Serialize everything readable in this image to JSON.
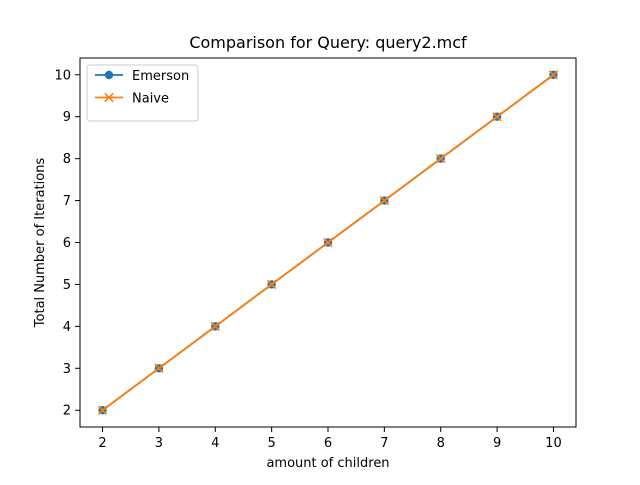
{
  "chart_data": {
    "type": "line",
    "title": "Comparison for Query: query2.mcf",
    "xlabel": "amount of children",
    "ylabel": "Total Number of Iterations",
    "xlim": [
      1.6,
      10.4
    ],
    "ylim": [
      1.6,
      10.4
    ],
    "x": [
      2,
      3,
      4,
      5,
      6,
      7,
      8,
      9,
      10
    ],
    "xticks": [
      2,
      3,
      4,
      5,
      6,
      7,
      8,
      9,
      10
    ],
    "yticks": [
      2,
      3,
      4,
      5,
      6,
      7,
      8,
      9,
      10
    ],
    "grid": false,
    "legend_position": "top-left",
    "series": [
      {
        "name": "Emerson",
        "values": [
          2,
          3,
          4,
          5,
          6,
          7,
          8,
          9,
          10
        ],
        "color": "#1f77b4",
        "marker": "circle"
      },
      {
        "name": "Naive",
        "values": [
          2,
          3,
          4,
          5,
          6,
          7,
          8,
          9,
          10
        ],
        "color": "#ff7f0e",
        "marker": "x"
      }
    ]
  }
}
